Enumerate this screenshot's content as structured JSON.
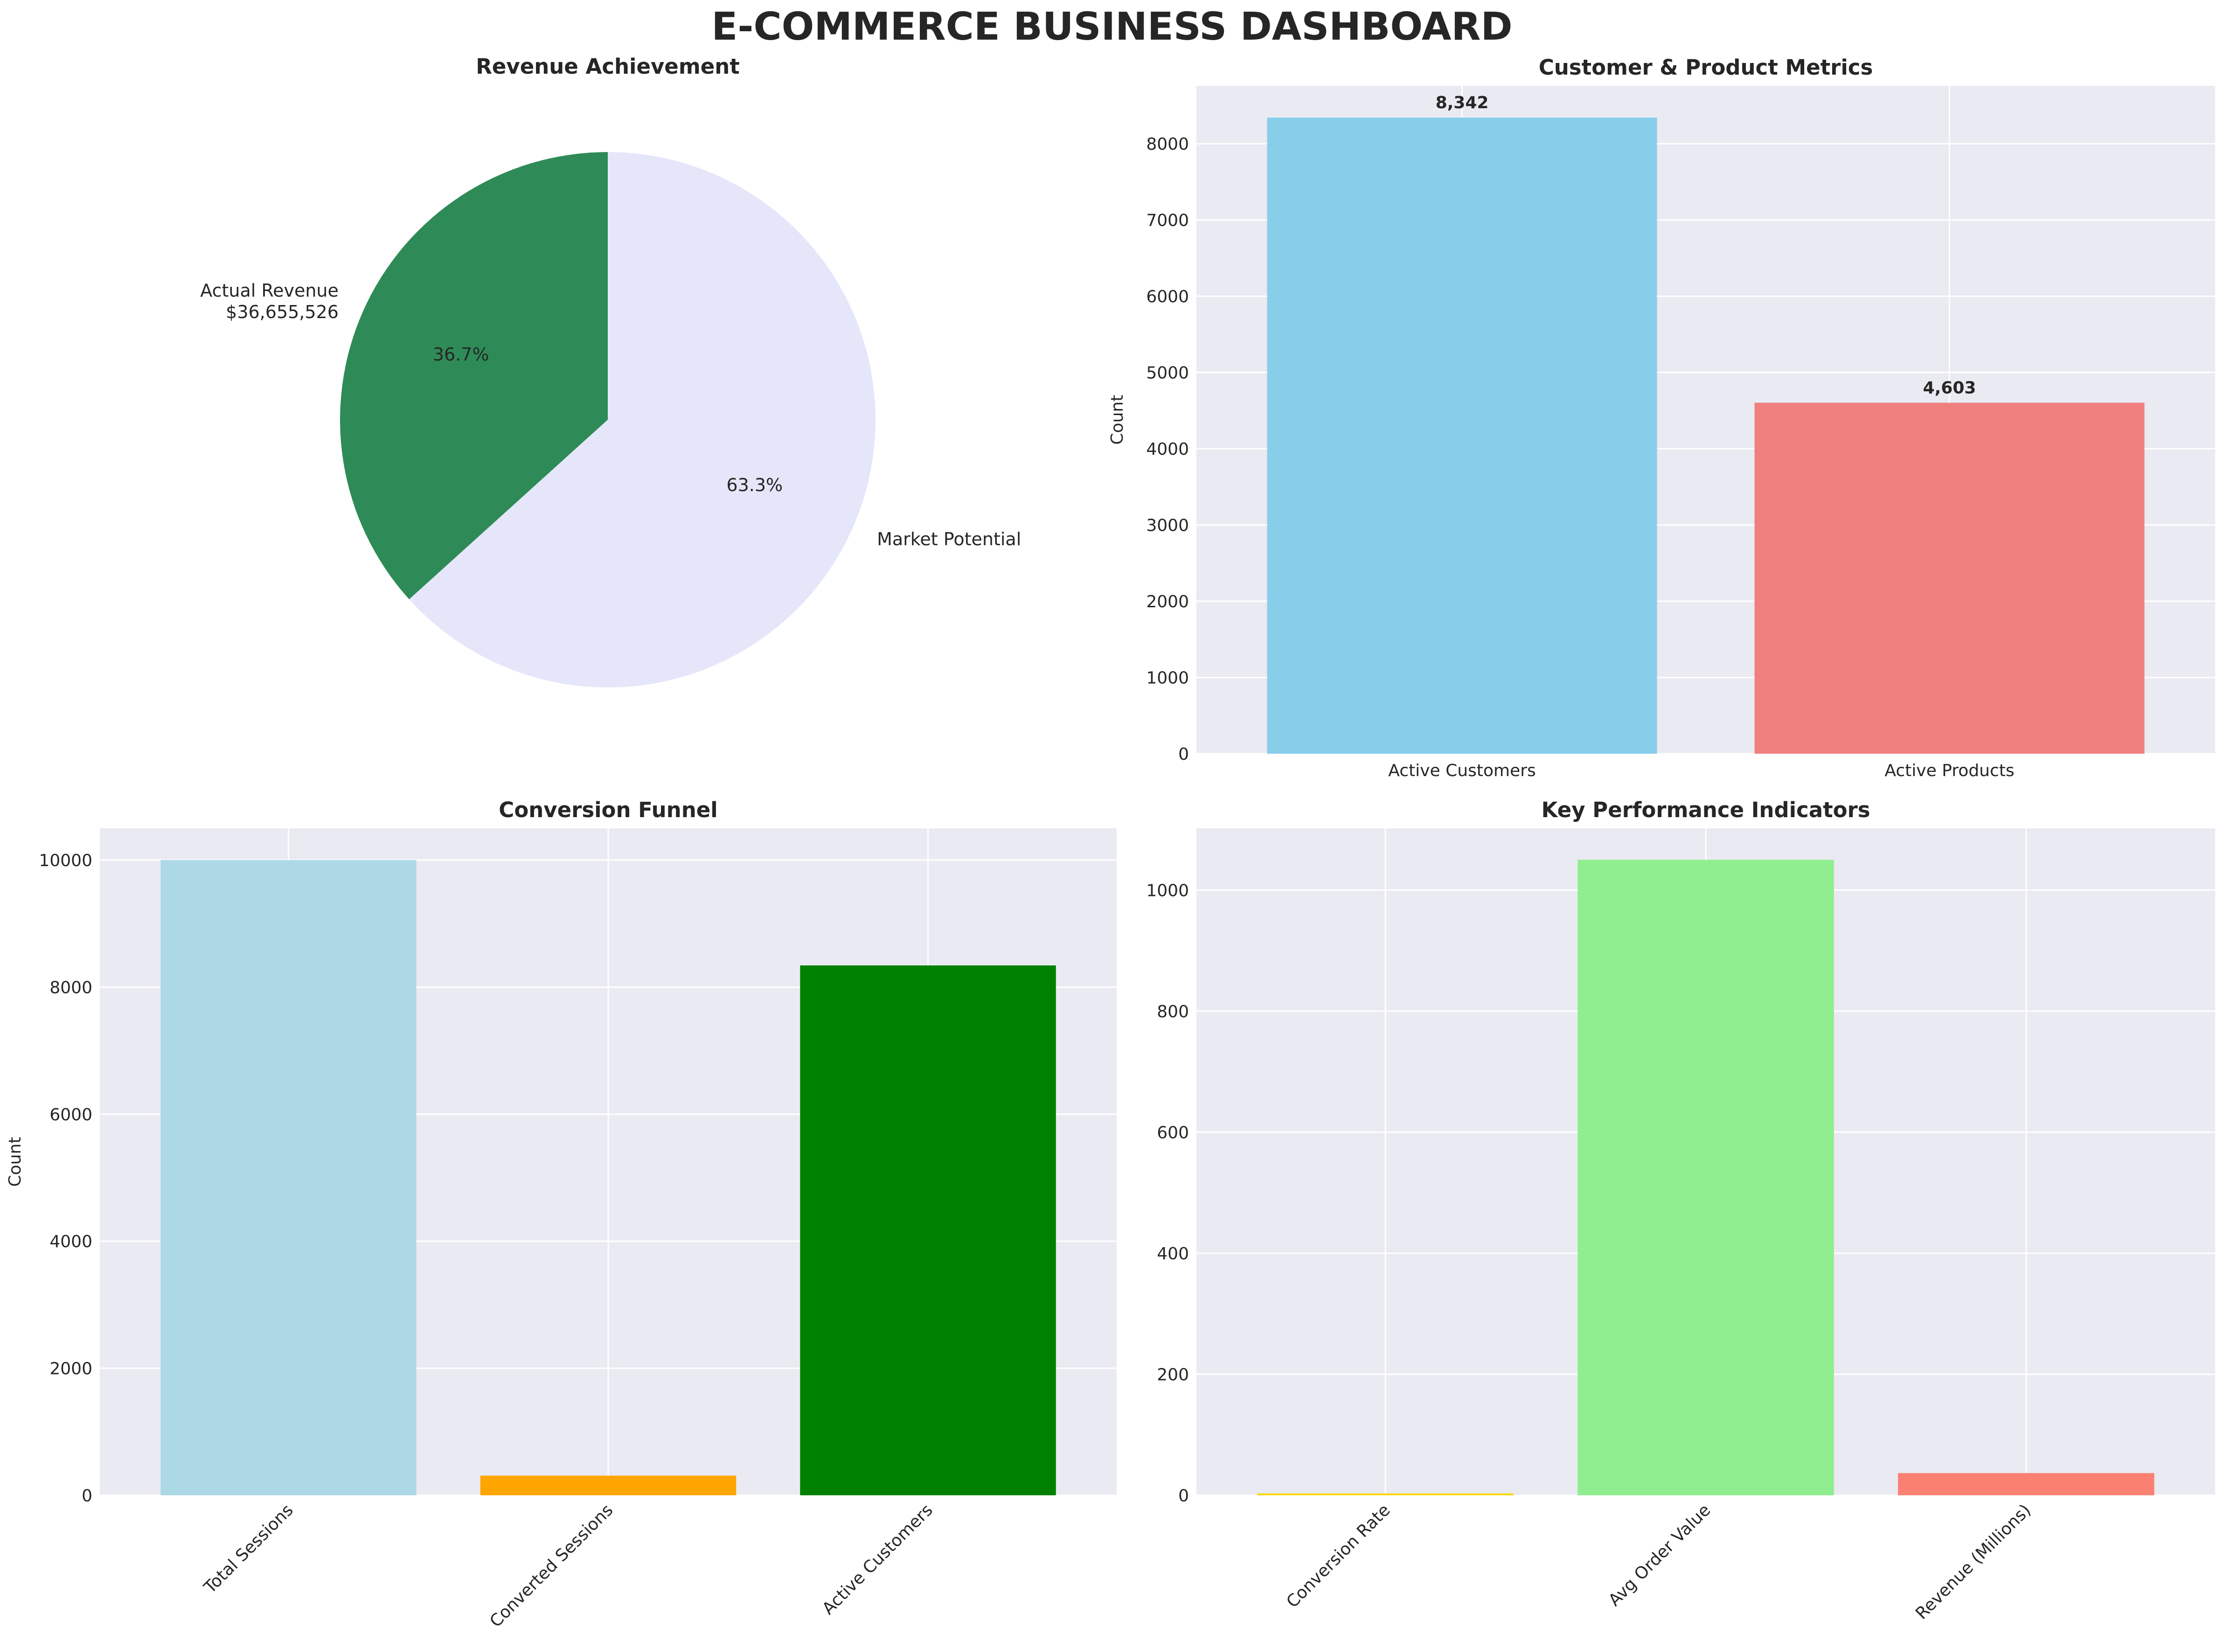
{
  "dashboard": {
    "title": "E-COMMERCE BUSINESS DASHBOARD"
  },
  "colors": {
    "plot_bg": "#EAEAF2",
    "grid": "#FFFFFF",
    "text": "#262626"
  },
  "chart_data": [
    {
      "type": "pie",
      "title": "Revenue Achievement",
      "slices": [
        {
          "label": "Actual Revenue",
          "sublabel": "$36,655,526",
          "value": 36.7,
          "pct_label": "36.7%",
          "color": "#2E8B57"
        },
        {
          "label": "Market Potential",
          "sublabel": "",
          "value": 63.3,
          "pct_label": "63.3%",
          "color": "#E6E6FA"
        }
      ],
      "start_angle_deg": 90,
      "direction": "counterclockwise"
    },
    {
      "type": "bar",
      "title": "Customer & Product Metrics",
      "categories": [
        "Active Customers",
        "Active Products"
      ],
      "values": [
        8342,
        4603
      ],
      "value_labels": [
        "8,342",
        "4,603"
      ],
      "colors": [
        "#87CEEB",
        "#F08080"
      ],
      "ylabel": "Count",
      "ylim": [
        0,
        8759
      ],
      "yticks": [
        0,
        1000,
        2000,
        3000,
        4000,
        5000,
        6000,
        7000,
        8000
      ],
      "tick_rotation": 0,
      "grid": true
    },
    {
      "type": "bar",
      "title": "Conversion Funnel",
      "categories": [
        "Total Sessions",
        "Converted Sessions",
        "Active Customers"
      ],
      "values": [
        10000,
        310,
        8342
      ],
      "colors": [
        "#ADD8E6",
        "#FFA500",
        "#008000"
      ],
      "ylabel": "Count",
      "ylim": [
        0,
        10500
      ],
      "yticks": [
        0,
        2000,
        4000,
        6000,
        8000,
        10000
      ],
      "tick_rotation": -45,
      "grid": true
    },
    {
      "type": "bar",
      "title": "Key Performance Indicators",
      "categories": [
        "Conversion Rate",
        "Avg Order Value",
        "Revenue (Millions)"
      ],
      "values": [
        3.1,
        1050,
        36.66
      ],
      "colors": [
        "#FFD700",
        "#90EE90",
        "#FA8072"
      ],
      "ylabel": "",
      "ylim": [
        0,
        1102
      ],
      "yticks": [
        0,
        200,
        400,
        600,
        800,
        1000
      ],
      "tick_rotation": -45,
      "grid": true
    }
  ]
}
